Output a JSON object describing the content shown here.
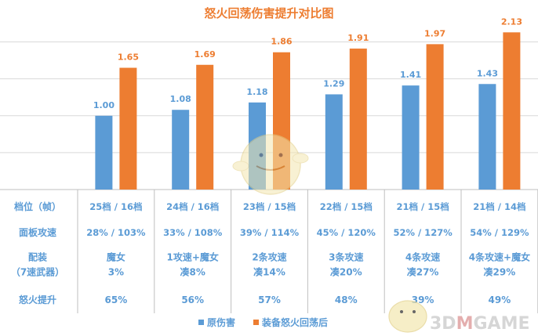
{
  "chart_data": {
    "type": "bar",
    "title": "怒火回荡伤害提升对比图",
    "categories": [
      "25档 / 16档",
      "24档 / 16档",
      "23档 / 15档",
      "22档 / 15档",
      "21档 / 15档",
      "21档 / 14档"
    ],
    "series": [
      {
        "name": "原伤害",
        "color": "#5B9BD5",
        "values": [
          1.0,
          1.08,
          1.18,
          1.29,
          1.41,
          1.43
        ],
        "labels": [
          "1.00",
          "1.08",
          "1.18",
          "1.29",
          "1.41",
          "1.43"
        ]
      },
      {
        "name": "装备怒火回荡后",
        "color": "#ED7D31",
        "values": [
          1.65,
          1.69,
          1.86,
          1.91,
          1.97,
          2.13
        ],
        "labels": [
          "1.65",
          "1.69",
          "1.86",
          "1.91",
          "1.97",
          "2.13"
        ]
      }
    ],
    "ylim": [
      0,
      2.25
    ],
    "grid": true,
    "legend_position": "bottom"
  },
  "table": {
    "rows": [
      {
        "label": [
          "档位（帧）"
        ],
        "cells": [
          [
            "25档 / 16档"
          ],
          [
            "24档 / 16档"
          ],
          [
            "23档 / 15档"
          ],
          [
            "22档 / 15档"
          ],
          [
            "21档 / 15档"
          ],
          [
            "21档 / 14档"
          ]
        ]
      },
      {
        "label": [
          "面板攻速"
        ],
        "cells": [
          [
            "28% / 103%"
          ],
          [
            "33% / 108%"
          ],
          [
            "39% / 114%"
          ],
          [
            "45% / 120%"
          ],
          [
            "52% / 127%"
          ],
          [
            "54% / 129%"
          ]
        ]
      },
      {
        "label": [
          "配装",
          "（7速武器）"
        ],
        "cells": [
          [
            "魔女",
            "3%"
          ],
          [
            "1攻速+魔女",
            "凑8%"
          ],
          [
            "2条攻速",
            "凑14%"
          ],
          [
            "3条攻速",
            "凑20%"
          ],
          [
            "4条攻速",
            "凑27%"
          ],
          [
            "4条攻速+魔女",
            "凑29%"
          ]
        ]
      },
      {
        "label": [
          "怒火提升"
        ],
        "cells": [
          [
            "65%"
          ],
          [
            "56%"
          ],
          [
            "57%"
          ],
          [
            "48%"
          ],
          [
            "39%"
          ],
          [
            "49%"
          ]
        ]
      }
    ]
  },
  "watermark": {
    "text_a": "3D",
    "text_b": "M",
    "text_c": "GAME"
  }
}
